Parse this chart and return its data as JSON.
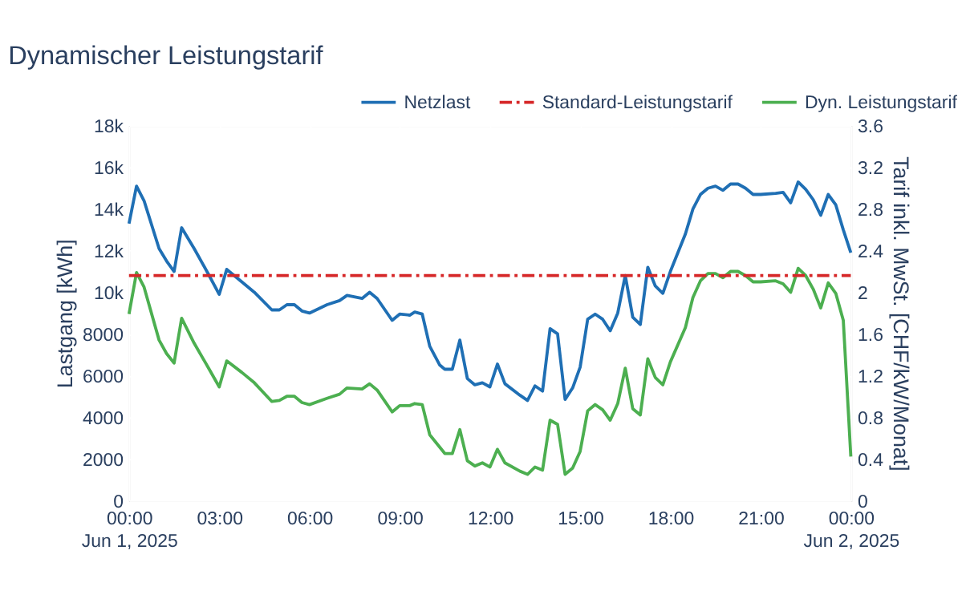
{
  "chart_data": {
    "type": "line",
    "title": "Dynamischer Leistungstarif",
    "ylabel": "Lastgang [kWh]",
    "y2label": "Tarif inkl. MwSt. [CHF/kW/Monat]",
    "x": [
      "2025-06-01T00:00",
      "2025-06-01T00:15",
      "2025-06-01T00:30",
      "2025-06-01T01:00",
      "2025-06-01T01:15",
      "2025-06-01T01:30",
      "2025-06-01T01:45",
      "2025-06-01T02:10",
      "2025-06-01T02:40",
      "2025-06-01T03:00",
      "2025-06-01T03:15",
      "2025-06-01T03:45",
      "2025-06-01T04:10",
      "2025-06-01T04:45",
      "2025-06-01T05:00",
      "2025-06-01T05:15",
      "2025-06-01T05:30",
      "2025-06-01T05:45",
      "2025-06-01T06:00",
      "2025-06-01T06:35",
      "2025-06-01T07:00",
      "2025-06-01T07:15",
      "2025-06-01T07:45",
      "2025-06-01T08:00",
      "2025-06-01T08:15",
      "2025-06-01T08:45",
      "2025-06-01T09:00",
      "2025-06-01T09:20",
      "2025-06-01T09:30",
      "2025-06-01T09:45",
      "2025-06-01T10:00",
      "2025-06-01T10:20",
      "2025-06-01T10:30",
      "2025-06-01T10:45",
      "2025-06-01T11:00",
      "2025-06-01T11:15",
      "2025-06-01T11:30",
      "2025-06-01T11:45",
      "2025-06-01T12:00",
      "2025-06-01T12:15",
      "2025-06-01T12:30",
      "2025-06-01T13:00",
      "2025-06-01T13:15",
      "2025-06-01T13:30",
      "2025-06-01T13:45",
      "2025-06-01T14:00",
      "2025-06-01T14:15",
      "2025-06-01T14:30",
      "2025-06-01T14:45",
      "2025-06-01T15:00",
      "2025-06-01T15:15",
      "2025-06-01T15:30",
      "2025-06-01T15:45",
      "2025-06-01T16:00",
      "2025-06-01T16:15",
      "2025-06-01T16:30",
      "2025-06-01T16:45",
      "2025-06-01T17:00",
      "2025-06-01T17:15",
      "2025-06-01T17:30",
      "2025-06-01T17:45",
      "2025-06-01T18:00",
      "2025-06-01T18:30",
      "2025-06-01T18:45",
      "2025-06-01T19:00",
      "2025-06-01T19:15",
      "2025-06-01T19:30",
      "2025-06-01T19:45",
      "2025-06-01T20:00",
      "2025-06-01T20:15",
      "2025-06-01T20:30",
      "2025-06-01T20:45",
      "2025-06-01T21:00",
      "2025-06-01T21:30",
      "2025-06-01T21:45",
      "2025-06-01T22:00",
      "2025-06-01T22:15",
      "2025-06-01T22:30",
      "2025-06-01T22:45",
      "2025-06-01T23:00",
      "2025-06-01T23:15",
      "2025-06-01T23:30",
      "2025-06-01T23:45",
      "2025-06-02T00:00"
    ],
    "series": [
      {
        "name": "Netzlast",
        "color": "#1f6fb4",
        "values": [
          13300,
          15100,
          14400,
          12100,
          11500,
          11000,
          13100,
          12100,
          10800,
          9900,
          11100,
          10500,
          10000,
          9150,
          9150,
          9400,
          9400,
          9100,
          9000,
          9400,
          9600,
          9850,
          9700,
          10000,
          9700,
          8650,
          8950,
          8900,
          9050,
          8950,
          7400,
          6500,
          6300,
          6300,
          7700,
          5850,
          5550,
          5650,
          5450,
          6550,
          5600,
          5050,
          4800,
          5500,
          5250,
          8250,
          8000,
          4850,
          5400,
          6400,
          8700,
          8950,
          8700,
          8150,
          9000,
          10800,
          8800,
          8450,
          11200,
          10300,
          9950,
          11000,
          12800,
          14000,
          14700,
          15000,
          15100,
          14900,
          15200,
          15200,
          15000,
          14700,
          14700,
          14750,
          14800,
          14300,
          15300,
          14950,
          14450,
          13700,
          14700,
          14200,
          13000,
          11900
        ]
      },
      {
        "name": "Dyn. Leistungstarif",
        "color": "#4caf50",
        "axis": "y2",
        "values": [
          1.79,
          2.19,
          2.05,
          1.54,
          1.41,
          1.32,
          1.75,
          1.51,
          1.26,
          1.09,
          1.34,
          1.23,
          1.13,
          0.95,
          0.96,
          1.0,
          1.0,
          0.94,
          0.92,
          0.98,
          1.02,
          1.08,
          1.07,
          1.12,
          1.06,
          0.85,
          0.91,
          0.91,
          0.93,
          0.92,
          0.63,
          0.51,
          0.45,
          0.45,
          0.68,
          0.38,
          0.33,
          0.36,
          0.32,
          0.49,
          0.36,
          0.28,
          0.25,
          0.32,
          0.29,
          0.77,
          0.73,
          0.25,
          0.31,
          0.47,
          0.86,
          0.92,
          0.87,
          0.77,
          0.93,
          1.27,
          0.88,
          0.82,
          1.36,
          1.18,
          1.11,
          1.33,
          1.66,
          1.95,
          2.11,
          2.18,
          2.18,
          2.14,
          2.2,
          2.2,
          2.16,
          2.1,
          2.1,
          2.11,
          2.08,
          2.0,
          2.23,
          2.16,
          2.03,
          1.85,
          2.09,
          1.99,
          1.73,
          0.42
        ]
      }
    ],
    "ref_lines": [
      {
        "axis": "y2",
        "value": 2.16,
        "label": "Standard-Leistungstarif",
        "color": "#d62728",
        "line_style": "dashed"
      }
    ],
    "xlim": [
      "2025-06-01T00:00",
      "2025-06-02T00:00"
    ],
    "xticks": [
      {
        "value": "2025-06-01T00:00",
        "label": "00:00\nJun 1, 2025"
      },
      {
        "value": "2025-06-01T03:00",
        "label": "03:00"
      },
      {
        "value": "2025-06-01T06:00",
        "label": "06:00"
      },
      {
        "value": "2025-06-01T09:00",
        "label": "09:00"
      },
      {
        "value": "2025-06-01T12:00",
        "label": "12:00"
      },
      {
        "value": "2025-06-01T15:00",
        "label": "15:00"
      },
      {
        "value": "2025-06-01T18:00",
        "label": "18:00"
      },
      {
        "value": "2025-06-01T21:00",
        "label": "21:00"
      },
      {
        "value": "2025-06-02T00:00",
        "label": "00:00\nJun 2, 2025"
      }
    ],
    "ylim": [
      0,
      18000
    ],
    "yticks": [
      0,
      2000,
      4000,
      6000,
      8000,
      {
        "value": 10000,
        "label": "10k"
      },
      {
        "value": 12000,
        "label": "12k"
      },
      {
        "value": 14000,
        "label": "14k"
      },
      {
        "value": 16000,
        "label": "16k"
      },
      {
        "value": 18000,
        "label": "18k"
      }
    ],
    "y2lim": [
      0,
      3.6
    ],
    "y2ticks": [
      0,
      0.4,
      0.8,
      1.2,
      1.6,
      2,
      2.4,
      2.8,
      3.2,
      3.6
    ],
    "grid": true,
    "legend": "top right",
    "line_style": "solid",
    "marker": "none"
  }
}
